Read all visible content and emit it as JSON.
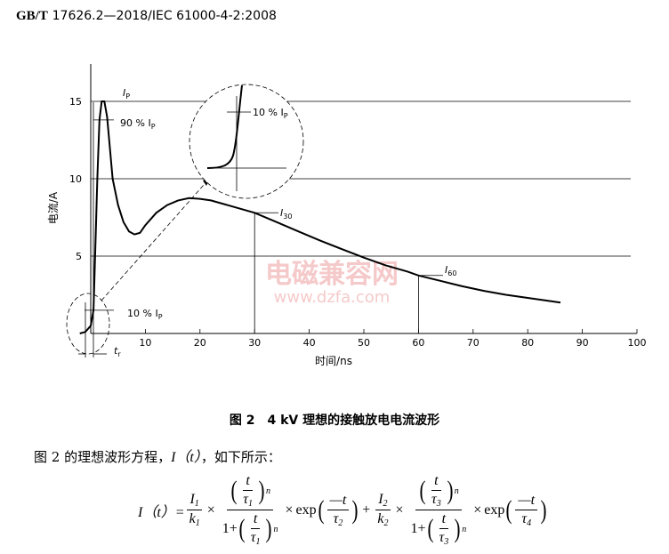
{
  "header": {
    "prefix": "GB/T",
    "number": "17626.2—2018/IEC 61000-4-2:2008"
  },
  "chart_data": {
    "type": "line",
    "xlabel": "时间/ns",
    "ylabel": "电流/A",
    "xlim": [
      0,
      100
    ],
    "ylim": [
      0,
      16
    ],
    "xticks": [
      10,
      20,
      30,
      40,
      50,
      60,
      70,
      80,
      90,
      100
    ],
    "yticks": [
      5,
      10,
      15
    ],
    "hlines": [
      5,
      10,
      15
    ],
    "series": [
      {
        "x": [
          -2,
          -1,
          0,
          0.5,
          0.8,
          1.2,
          1.6,
          2,
          2.5,
          3,
          3.5,
          4,
          5,
          6,
          7,
          8,
          9,
          10,
          12,
          14,
          16,
          18,
          20,
          22,
          25,
          28,
          30,
          34,
          38,
          42,
          46,
          50,
          54,
          58,
          60,
          64,
          68,
          72,
          76,
          80,
          84,
          86
        ],
        "y": [
          0,
          0.1,
          0.5,
          1.5,
          5,
          10,
          13.8,
          15,
          15,
          14,
          12,
          10,
          8.3,
          7.2,
          6.6,
          6.4,
          6.5,
          7,
          7.8,
          8.3,
          8.6,
          8.75,
          8.7,
          8.6,
          8.3,
          8.0,
          7.8,
          7.2,
          6.6,
          6.0,
          5.45,
          4.9,
          4.4,
          4.0,
          3.75,
          3.4,
          3.05,
          2.75,
          2.5,
          2.3,
          2.1,
          2.0
        ]
      }
    ],
    "annotations": {
      "ip": "I",
      "ip_sub": "P",
      "p90": "90 % I",
      "p90_sub": "P",
      "p10": "10 % I",
      "p10_sub": "P",
      "i30": "I",
      "i30_sub": "30",
      "i60": "I",
      "i60_sub": "60",
      "tr": "t",
      "tr_sub": "r",
      "zoom_p10": "10 % I",
      "zoom_p10_sub": "P"
    },
    "watermark": "电磁兼容网",
    "watermark_url": "www.dzfa.com"
  },
  "caption": "图 2　4 kV 理想的接触放电电流波形",
  "intro_text": "图 2 的理想波形方程，",
  "intro_func": "I（t）",
  "intro_rest": "，如下所示：",
  "equation": {
    "lhs": "I（t）=",
    "i1": "I",
    "i1_sub": "1",
    "k1": "k",
    "k1_sub": "1",
    "t": "t",
    "tau": "τ",
    "tau1_sub": "1",
    "tau2_sub": "2",
    "tau3_sub": "3",
    "tau4_sub": "4",
    "n": "n",
    "one_plus": "1+",
    "times": "×",
    "exp": "exp",
    "minus_t": "—t",
    "plus": "+",
    "i2": "I",
    "i2_sub": "2",
    "k2": "k",
    "k2_sub": "2"
  }
}
